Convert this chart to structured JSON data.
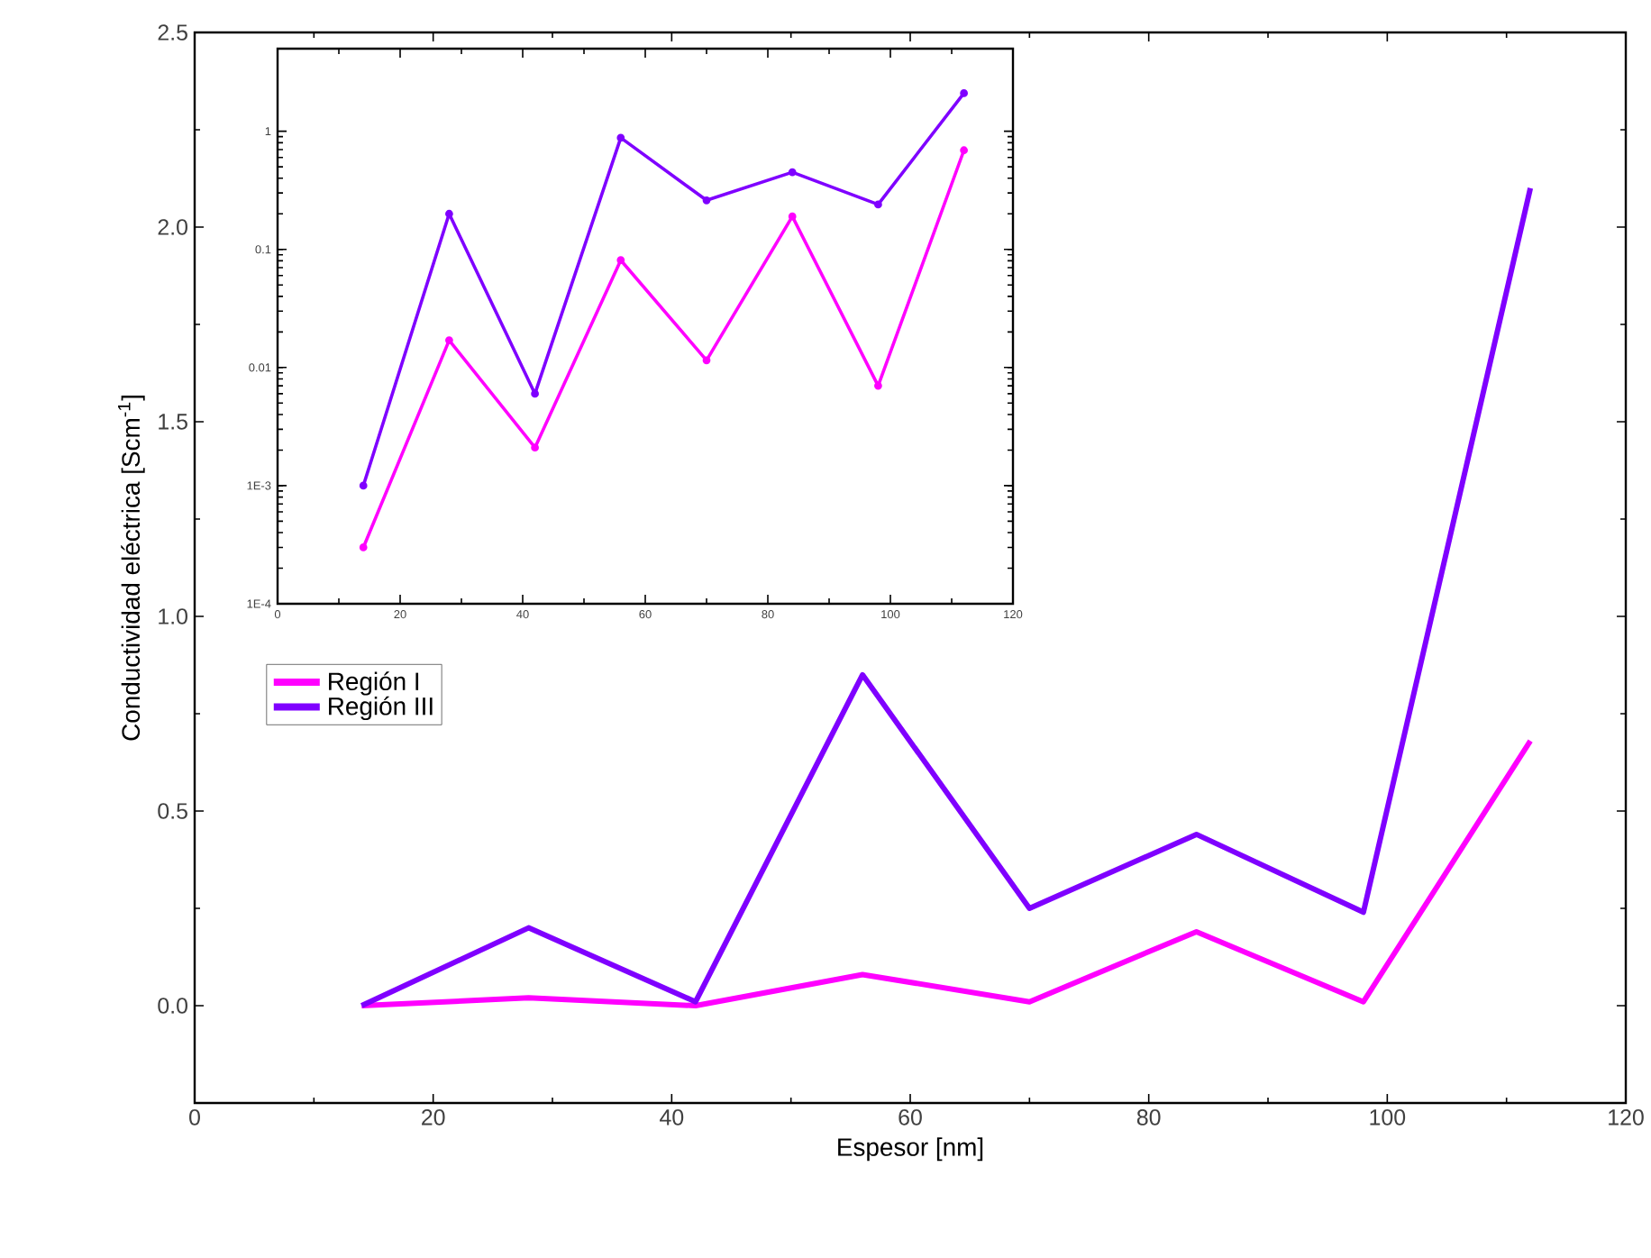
{
  "chart_data": [
    {
      "type": "line",
      "xlabel": "Espesor [nm]",
      "ylabel": "Conductividad eléctrica [Scm$^{-1}$]",
      "x": [
        14,
        28,
        42,
        56,
        70,
        84,
        98,
        112
      ],
      "series": [
        {
          "name": "Región I",
          "color": "#ff00ff",
          "values": [
            0,
            0.02,
            0,
            0.08,
            0.01,
            0.19,
            0.01,
            0.68
          ]
        },
        {
          "name": "Región III",
          "color": "#7f00ff",
          "values": [
            0,
            0.2,
            0.01,
            0.85,
            0.25,
            0.44,
            0.24,
            2.1
          ]
        }
      ],
      "xlim": [
        0,
        120
      ],
      "ylim": [
        -0.25,
        2.5
      ],
      "xticks": [
        0,
        20,
        40,
        60,
        80,
        100,
        120
      ],
      "yticks": [
        {
          "value": 0,
          "label": "0.0"
        },
        {
          "value": 0.5,
          "label": "0.5"
        },
        {
          "value": 1,
          "label": "1.0"
        },
        {
          "value": 1.5,
          "label": "1.5"
        },
        {
          "value": 2,
          "label": "2.0"
        },
        {
          "value": 2.5,
          "label": "2.5"
        }
      ],
      "legend": "left",
      "grid": false
    },
    {
      "type": "line",
      "log": "y",
      "x": [
        14,
        28,
        42,
        56,
        70,
        84,
        98,
        112
      ],
      "series": [
        {
          "color": "#ff00ff",
          "values": [
            0.0003,
            0.017,
            0.0021,
            0.081,
            0.0115,
            0.19,
            0.007,
            0.69
          ]
        },
        {
          "color": "#7f00ff",
          "values": [
            0.001,
            0.2,
            0.006,
            0.88,
            0.26,
            0.45,
            0.24,
            2.1
          ]
        }
      ],
      "xlim": [
        0,
        120
      ],
      "ylim": [
        0.0001,
        5
      ],
      "xticks": [
        0,
        20,
        40,
        60,
        80,
        100,
        120
      ],
      "yticks": [
        {
          "value": 0.0001,
          "label": "1E-4"
        },
        {
          "value": 0.001,
          "label": "1E-3"
        },
        {
          "value": 0.01,
          "label": "0.01"
        },
        {
          "value": 0.1,
          "label": "0.1"
        },
        {
          "value": 1,
          "label": "1"
        }
      ],
      "marker": "circle",
      "grid": false
    }
  ]
}
